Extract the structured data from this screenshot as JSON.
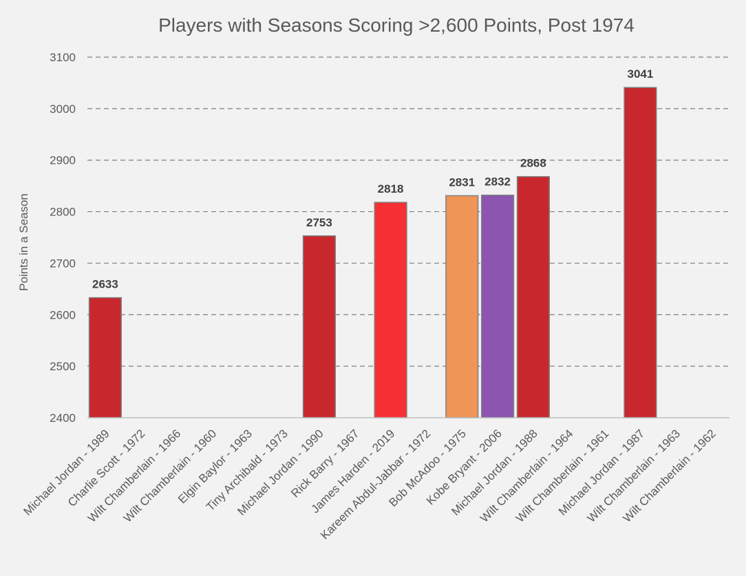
{
  "chart_data": {
    "type": "bar",
    "title": "Players with Seasons Scoring >2,600 Points, Post 1974",
    "xlabel": "",
    "ylabel": "Points in a Season",
    "ylim": [
      2400,
      3100
    ],
    "y_ticks": [
      2400,
      2500,
      2600,
      2700,
      2800,
      2900,
      3000,
      3100
    ],
    "grid": true,
    "legend": "none",
    "categories": [
      "Michael Jordan - 1989",
      "Charlie Scott - 1972",
      "Wilt Chamberlain - 1966",
      "Wilt Chamberlain - 1960",
      "Elgin Baylor - 1963",
      "Tiny Archibald - 1973",
      "Michael Jordan - 1990",
      "Rick Barry - 1967",
      "James Harden - 2019",
      "Kareem Abdul-Jabbar - 1972",
      "Bob McAdoo - 1975",
      "Kobe Bryant - 2006",
      "Michael Jordan - 1988",
      "Wilt Chamberlain - 1964",
      "Wilt Chamberlain - 1961",
      "Michael Jordan - 1987",
      "Wilt Chamberlain - 1963",
      "Wilt Chamberlain - 1962"
    ],
    "values": [
      2633,
      null,
      null,
      null,
      null,
      null,
      2753,
      null,
      2818,
      null,
      2831,
      2832,
      2868,
      null,
      null,
      3041,
      null,
      null
    ],
    "colors": [
      "#c8282d",
      null,
      null,
      null,
      null,
      null,
      "#c8282d",
      null,
      "#f73034",
      null,
      "#ef9556",
      "#8b55b0",
      "#c8282d",
      null,
      null,
      "#c8282d",
      null,
      null
    ]
  }
}
